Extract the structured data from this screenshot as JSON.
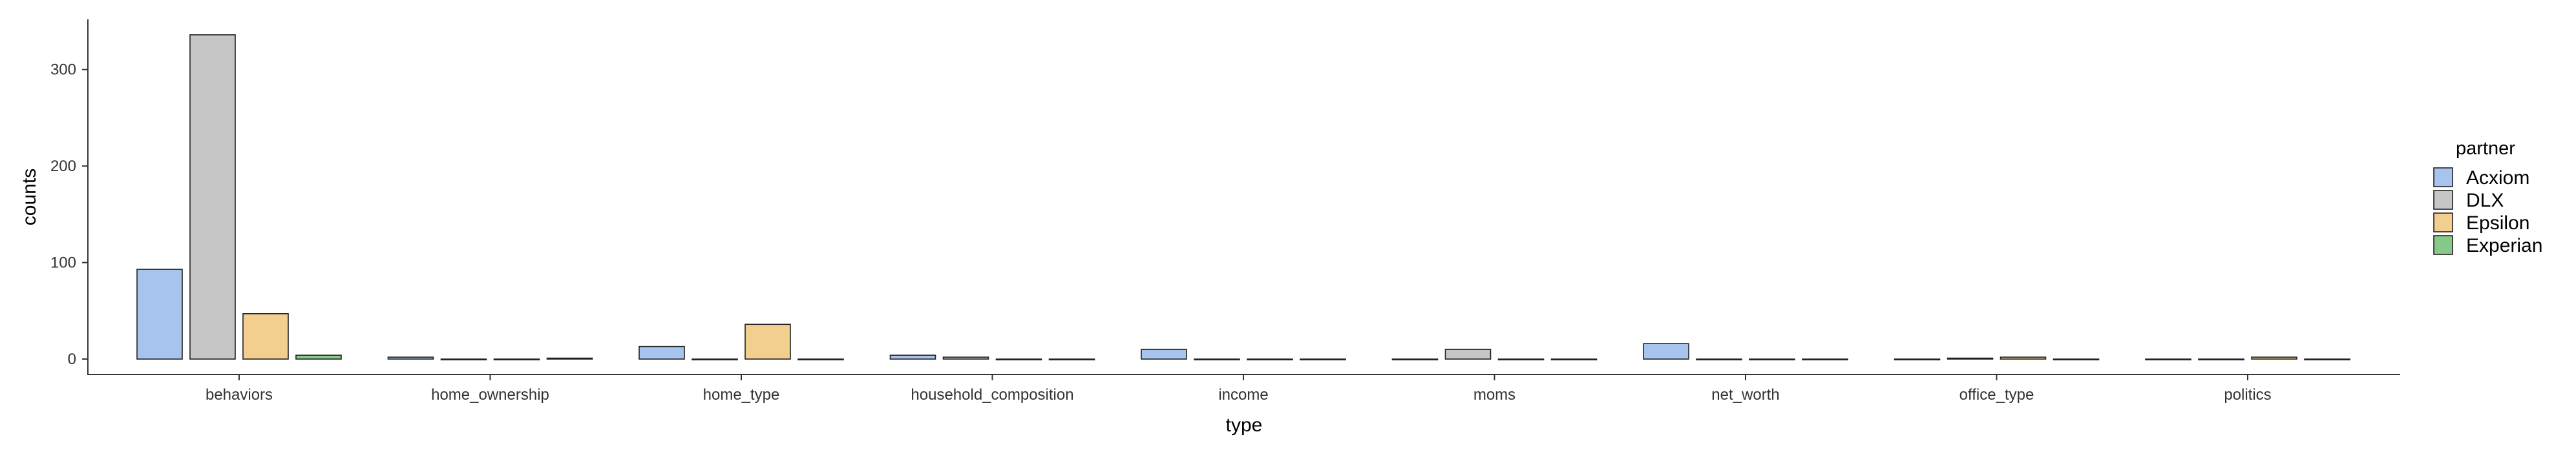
{
  "chart_data": {
    "type": "bar",
    "xlabel": "type",
    "ylabel": "counts",
    "ylim": [
      -16,
      352
    ],
    "yticks": [
      0,
      100,
      200,
      300
    ],
    "grid": false,
    "legend": {
      "title": "partner",
      "position": "right"
    },
    "categories": [
      "behaviors",
      "home_ownership",
      "home_type",
      "household_composition",
      "income",
      "moms",
      "net_worth",
      "office_type",
      "politics"
    ],
    "series": [
      {
        "name": "Acxiom",
        "color": "#a7c4ef",
        "values": [
          93,
          2,
          13,
          4,
          10,
          0,
          16,
          0,
          0
        ]
      },
      {
        "name": "DLX",
        "color": "#c6c6c6",
        "values": [
          336,
          0,
          0,
          2,
          0,
          10,
          0,
          1,
          0
        ]
      },
      {
        "name": "Epsilon",
        "color": "#f3cf8f",
        "values": [
          47,
          0,
          36,
          0,
          0,
          0,
          0,
          2,
          2
        ]
      },
      {
        "name": "Experian",
        "color": "#86c98b",
        "values": [
          4,
          1,
          0,
          0,
          0,
          0,
          0,
          0,
          0
        ]
      }
    ]
  }
}
